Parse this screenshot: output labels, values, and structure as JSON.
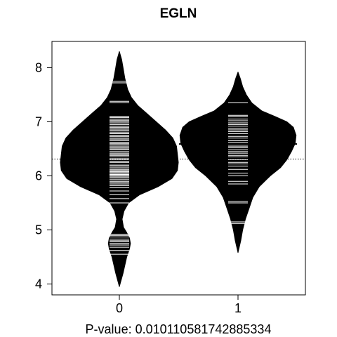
{
  "chart_data": {
    "type": "beanplot",
    "title": "EGLN",
    "xlabel": "P-value: 0.010110581742885334",
    "ylabel": "",
    "categories": [
      "0",
      "1"
    ],
    "yticks": [
      4,
      5,
      6,
      7,
      8
    ],
    "ylim": [
      3.8,
      8.45
    ],
    "overall_mean": 6.31,
    "grid": false,
    "legend": "none",
    "colors": {
      "fill": "#000000",
      "lines": "#ffffff",
      "axes": "#000000"
    },
    "series": [
      {
        "group": "0",
        "mean": 6.22,
        "density": [
          [
            3.95,
            0.0
          ],
          [
            4.2,
            0.04
          ],
          [
            4.5,
            0.08
          ],
          [
            4.65,
            0.11
          ],
          [
            4.75,
            0.12
          ],
          [
            4.85,
            0.11
          ],
          [
            4.95,
            0.08
          ],
          [
            5.05,
            0.045
          ],
          [
            5.2,
            0.03
          ],
          [
            5.35,
            0.05
          ],
          [
            5.5,
            0.1
          ],
          [
            5.65,
            0.22
          ],
          [
            5.8,
            0.42
          ],
          [
            5.95,
            0.57
          ],
          [
            6.1,
            0.63
          ],
          [
            6.25,
            0.64
          ],
          [
            6.4,
            0.63
          ],
          [
            6.55,
            0.62
          ],
          [
            6.7,
            0.58
          ],
          [
            6.85,
            0.5
          ],
          [
            7.0,
            0.4
          ],
          [
            7.15,
            0.3
          ],
          [
            7.3,
            0.2
          ],
          [
            7.45,
            0.13
          ],
          [
            7.6,
            0.09
          ],
          [
            7.8,
            0.06
          ],
          [
            8.0,
            0.04
          ],
          [
            8.15,
            0.025
          ],
          [
            8.3,
            0.0
          ]
        ],
        "observations": [
          4.55,
          4.62,
          4.68,
          4.72,
          4.75,
          4.78,
          4.8,
          4.83,
          4.87,
          4.9,
          4.92,
          5.5,
          5.58,
          5.65,
          5.72,
          5.78,
          5.82,
          5.85,
          5.88,
          5.9,
          5.93,
          5.96,
          5.98,
          6.0,
          6.02,
          6.03,
          6.05,
          6.07,
          6.08,
          6.1,
          6.12,
          6.15,
          6.18,
          6.2,
          6.22,
          6.25,
          6.27,
          6.3,
          6.32,
          6.35,
          6.38,
          6.4,
          6.42,
          6.45,
          6.48,
          6.5,
          6.52,
          6.55,
          6.58,
          6.6,
          6.62,
          6.65,
          6.68,
          6.7,
          6.73,
          6.75,
          6.78,
          6.8,
          6.83,
          6.85,
          6.88,
          6.9,
          6.92,
          6.95,
          6.98,
          7.0,
          7.03,
          7.05,
          7.08,
          7.1,
          7.35,
          7.38,
          7.72,
          7.75
        ]
      },
      {
        "group": "1",
        "mean": 6.59,
        "density": [
          [
            4.58,
            0.0
          ],
          [
            4.8,
            0.03
          ],
          [
            5.0,
            0.05
          ],
          [
            5.2,
            0.08
          ],
          [
            5.4,
            0.12
          ],
          [
            5.6,
            0.16
          ],
          [
            5.8,
            0.23
          ],
          [
            6.0,
            0.35
          ],
          [
            6.15,
            0.46
          ],
          [
            6.3,
            0.53
          ],
          [
            6.45,
            0.58
          ],
          [
            6.6,
            0.62
          ],
          [
            6.75,
            0.63
          ],
          [
            6.9,
            0.6
          ],
          [
            7.0,
            0.53
          ],
          [
            7.1,
            0.4
          ],
          [
            7.2,
            0.26
          ],
          [
            7.35,
            0.15
          ],
          [
            7.5,
            0.09
          ],
          [
            7.65,
            0.05
          ],
          [
            7.8,
            0.025
          ],
          [
            7.92,
            0.0
          ]
        ],
        "observations": [
          5.12,
          5.15,
          5.5,
          5.53,
          5.85,
          5.9,
          6.0,
          6.05,
          6.12,
          6.18,
          6.22,
          6.25,
          6.3,
          6.35,
          6.38,
          6.42,
          6.45,
          6.48,
          6.52,
          6.55,
          6.58,
          6.62,
          6.65,
          6.7,
          6.73,
          6.78,
          6.82,
          6.85,
          6.88,
          6.92,
          6.95,
          6.98,
          7.02,
          7.05,
          7.1,
          7.12,
          7.35
        ]
      }
    ]
  }
}
